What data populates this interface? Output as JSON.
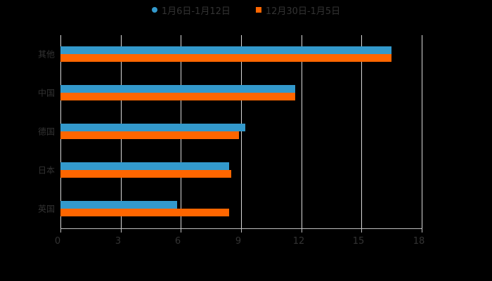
{
  "chart_data": {
    "type": "bar",
    "orientation": "horizontal",
    "title": "",
    "xlabel": "",
    "ylabel": "",
    "categories": [
      "其他",
      "中国",
      "德国",
      "日本",
      "英国"
    ],
    "series": [
      {
        "name": "1月6日-1月12日",
        "color": "#3399CC",
        "values": [
          16.5,
          11.7,
          9.2,
          8.4,
          5.8
        ]
      },
      {
        "name": "12月30日-1月5日",
        "color": "#FF6600",
        "values": [
          16.5,
          11.7,
          8.9,
          8.5,
          8.4
        ]
      }
    ],
    "xlim": [
      0,
      18
    ],
    "xticks": [
      "0",
      "3",
      "6",
      "9",
      "12",
      "15",
      "18"
    ],
    "grid": true,
    "legend_position": "top"
  },
  "legend": {
    "series1_label": "1月6日-1月12日",
    "series2_label": "12月30日-1月5日"
  }
}
